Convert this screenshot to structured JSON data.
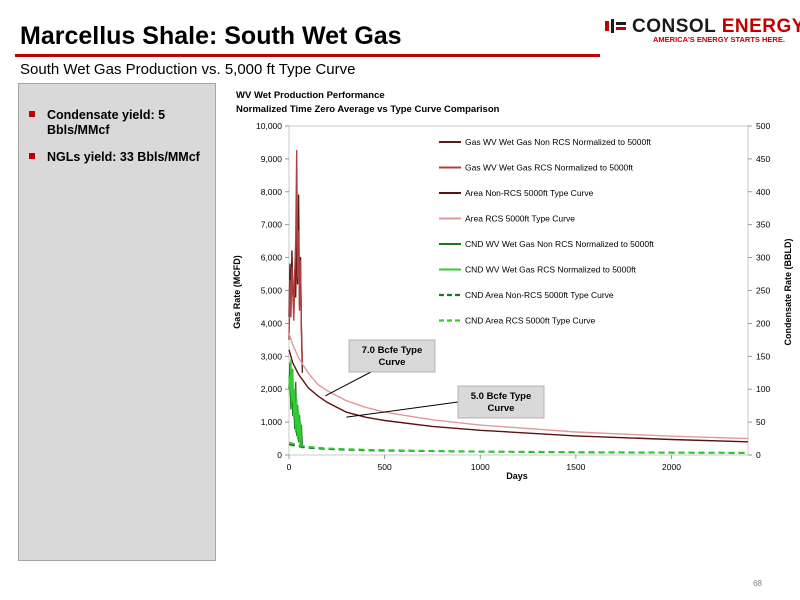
{
  "slide": {
    "title": "Marcellus Shale: South Wet Gas",
    "subtitle": "South Wet Gas Production vs. 5,000 ft Type Curve",
    "page_number": "68",
    "accent_color": "#c00000"
  },
  "logo": {
    "brand_dark": "CONSOL",
    "brand_red": "ENERGY",
    "tagline": "AMERICA'S ENERGY STARTS HERE."
  },
  "bullets": [
    {
      "text": "Condensate yield: 5 Bbls/MMcf"
    },
    {
      "text": "NGLs yield: 33 Bbls/MMcf"
    }
  ],
  "chart_data": {
    "type": "line",
    "title": "WV Wet Production Performance",
    "subtitle": "Normalized Time Zero Average vs Type Curve Comparison",
    "xlabel": "Days",
    "ylabel": "Gas Rate (MCFD)",
    "y2label": "Condensate Rate (BBLD)",
    "xlim": [
      0,
      2400
    ],
    "ylim": [
      0,
      10000
    ],
    "y2lim": [
      0,
      500
    ],
    "x_ticks": [
      "0",
      "500",
      "1000",
      "1500",
      "2000"
    ],
    "y_ticks": [
      "0",
      "1,000",
      "2,000",
      "3,000",
      "4,000",
      "5,000",
      "6,000",
      "7,000",
      "8,000",
      "9,000",
      "10,000"
    ],
    "y2_ticks": [
      "0",
      "50",
      "100",
      "150",
      "200",
      "250",
      "300",
      "350",
      "400",
      "450",
      "500"
    ],
    "legend_position": "top-right",
    "annotations": [
      {
        "text": "7.0 Bcfe Type Curve",
        "x": 190,
        "y": 1800
      },
      {
        "text": "5.0 Bcfe Type Curve",
        "x": 300,
        "y": 1150
      }
    ],
    "series": [
      {
        "name": "Gas WV Wet Gas Non RCS Normalized to 5000ft",
        "axis": "left",
        "color": "#5c1a1a",
        "style": "solid",
        "x": [
          0,
          5,
          10,
          15,
          20,
          25,
          30,
          35,
          40,
          45,
          50,
          55,
          60,
          65,
          70
        ],
        "y": [
          4200,
          5800,
          4600,
          6200,
          5100,
          4300,
          5600,
          4800,
          6900,
          5200,
          7900,
          4500,
          6000,
          3800,
          2500
        ]
      },
      {
        "name": "Gas WV Wet Gas RCS Normalized to 5000ft",
        "axis": "left",
        "color": "#b04040",
        "style": "solid",
        "x": [
          0,
          5,
          10,
          15,
          20,
          25,
          30,
          35,
          40,
          45,
          50,
          55,
          60,
          65,
          70
        ],
        "y": [
          3500,
          5300,
          4200,
          5700,
          4900,
          4100,
          5500,
          6500,
          9250,
          5400,
          6800,
          4400,
          5900,
          3900,
          2800
        ]
      },
      {
        "name": "Area Non-RCS 5000ft Type Curve",
        "axis": "left",
        "color": "#5c1010",
        "style": "solid",
        "x": [
          0,
          20,
          50,
          100,
          150,
          200,
          300,
          400,
          500,
          750,
          1000,
          1500,
          2000,
          2400
        ],
        "y": [
          3200,
          2800,
          2450,
          2050,
          1800,
          1600,
          1300,
          1150,
          1050,
          870,
          750,
          580,
          470,
          400
        ]
      },
      {
        "name": "Area RCS 5000ft Type Curve",
        "axis": "left",
        "color": "#e09a9a",
        "style": "solid",
        "x": [
          0,
          20,
          50,
          100,
          150,
          200,
          300,
          400,
          500,
          750,
          1000,
          1500,
          2000,
          2400
        ],
        "y": [
          3700,
          3350,
          2950,
          2500,
          2150,
          1950,
          1650,
          1450,
          1300,
          1070,
          910,
          700,
          570,
          500
        ]
      },
      {
        "name": "CND WV Wet Gas Non RCS Normalized to 5000ft",
        "axis": "right",
        "color": "#1a7a1a",
        "style": "solid",
        "x": [
          0,
          5,
          10,
          15,
          20,
          25,
          30,
          35,
          40,
          45,
          50,
          55,
          60,
          65,
          70
        ],
        "y": [
          100,
          140,
          70,
          130,
          60,
          95,
          40,
          110,
          30,
          75,
          20,
          60,
          15,
          45,
          10
        ]
      },
      {
        "name": "CND WV Wet Gas RCS Normalized to 5000ft",
        "axis": "right",
        "color": "#33cc33",
        "style": "solid",
        "x": [
          0,
          5,
          10,
          15,
          20,
          25,
          30,
          35,
          40,
          45,
          50,
          55,
          60,
          65,
          70
        ],
        "y": [
          120,
          90,
          145,
          80,
          130,
          55,
          100,
          35,
          85,
          25,
          65,
          20,
          50,
          15,
          10
        ]
      },
      {
        "name": "CND Area Non-RCS 5000ft Type Curve",
        "axis": "right",
        "color": "#1a7a1a",
        "style": "dashed",
        "x": [
          0,
          50,
          100,
          200,
          400,
          700,
          1000,
          1500,
          2000,
          2400
        ],
        "y": [
          16,
          13,
          11,
          9,
          7,
          6,
          5,
          4,
          3.5,
          3
        ]
      },
      {
        "name": "CND Area RCS 5000ft Type Curve",
        "axis": "right",
        "color": "#33cc33",
        "style": "dashed",
        "x": [
          0,
          50,
          100,
          200,
          400,
          700,
          1000,
          1500,
          2000,
          2400
        ],
        "y": [
          19,
          15,
          12.5,
          10,
          8,
          6.5,
          5.5,
          4.5,
          4,
          3.5
        ]
      }
    ]
  }
}
